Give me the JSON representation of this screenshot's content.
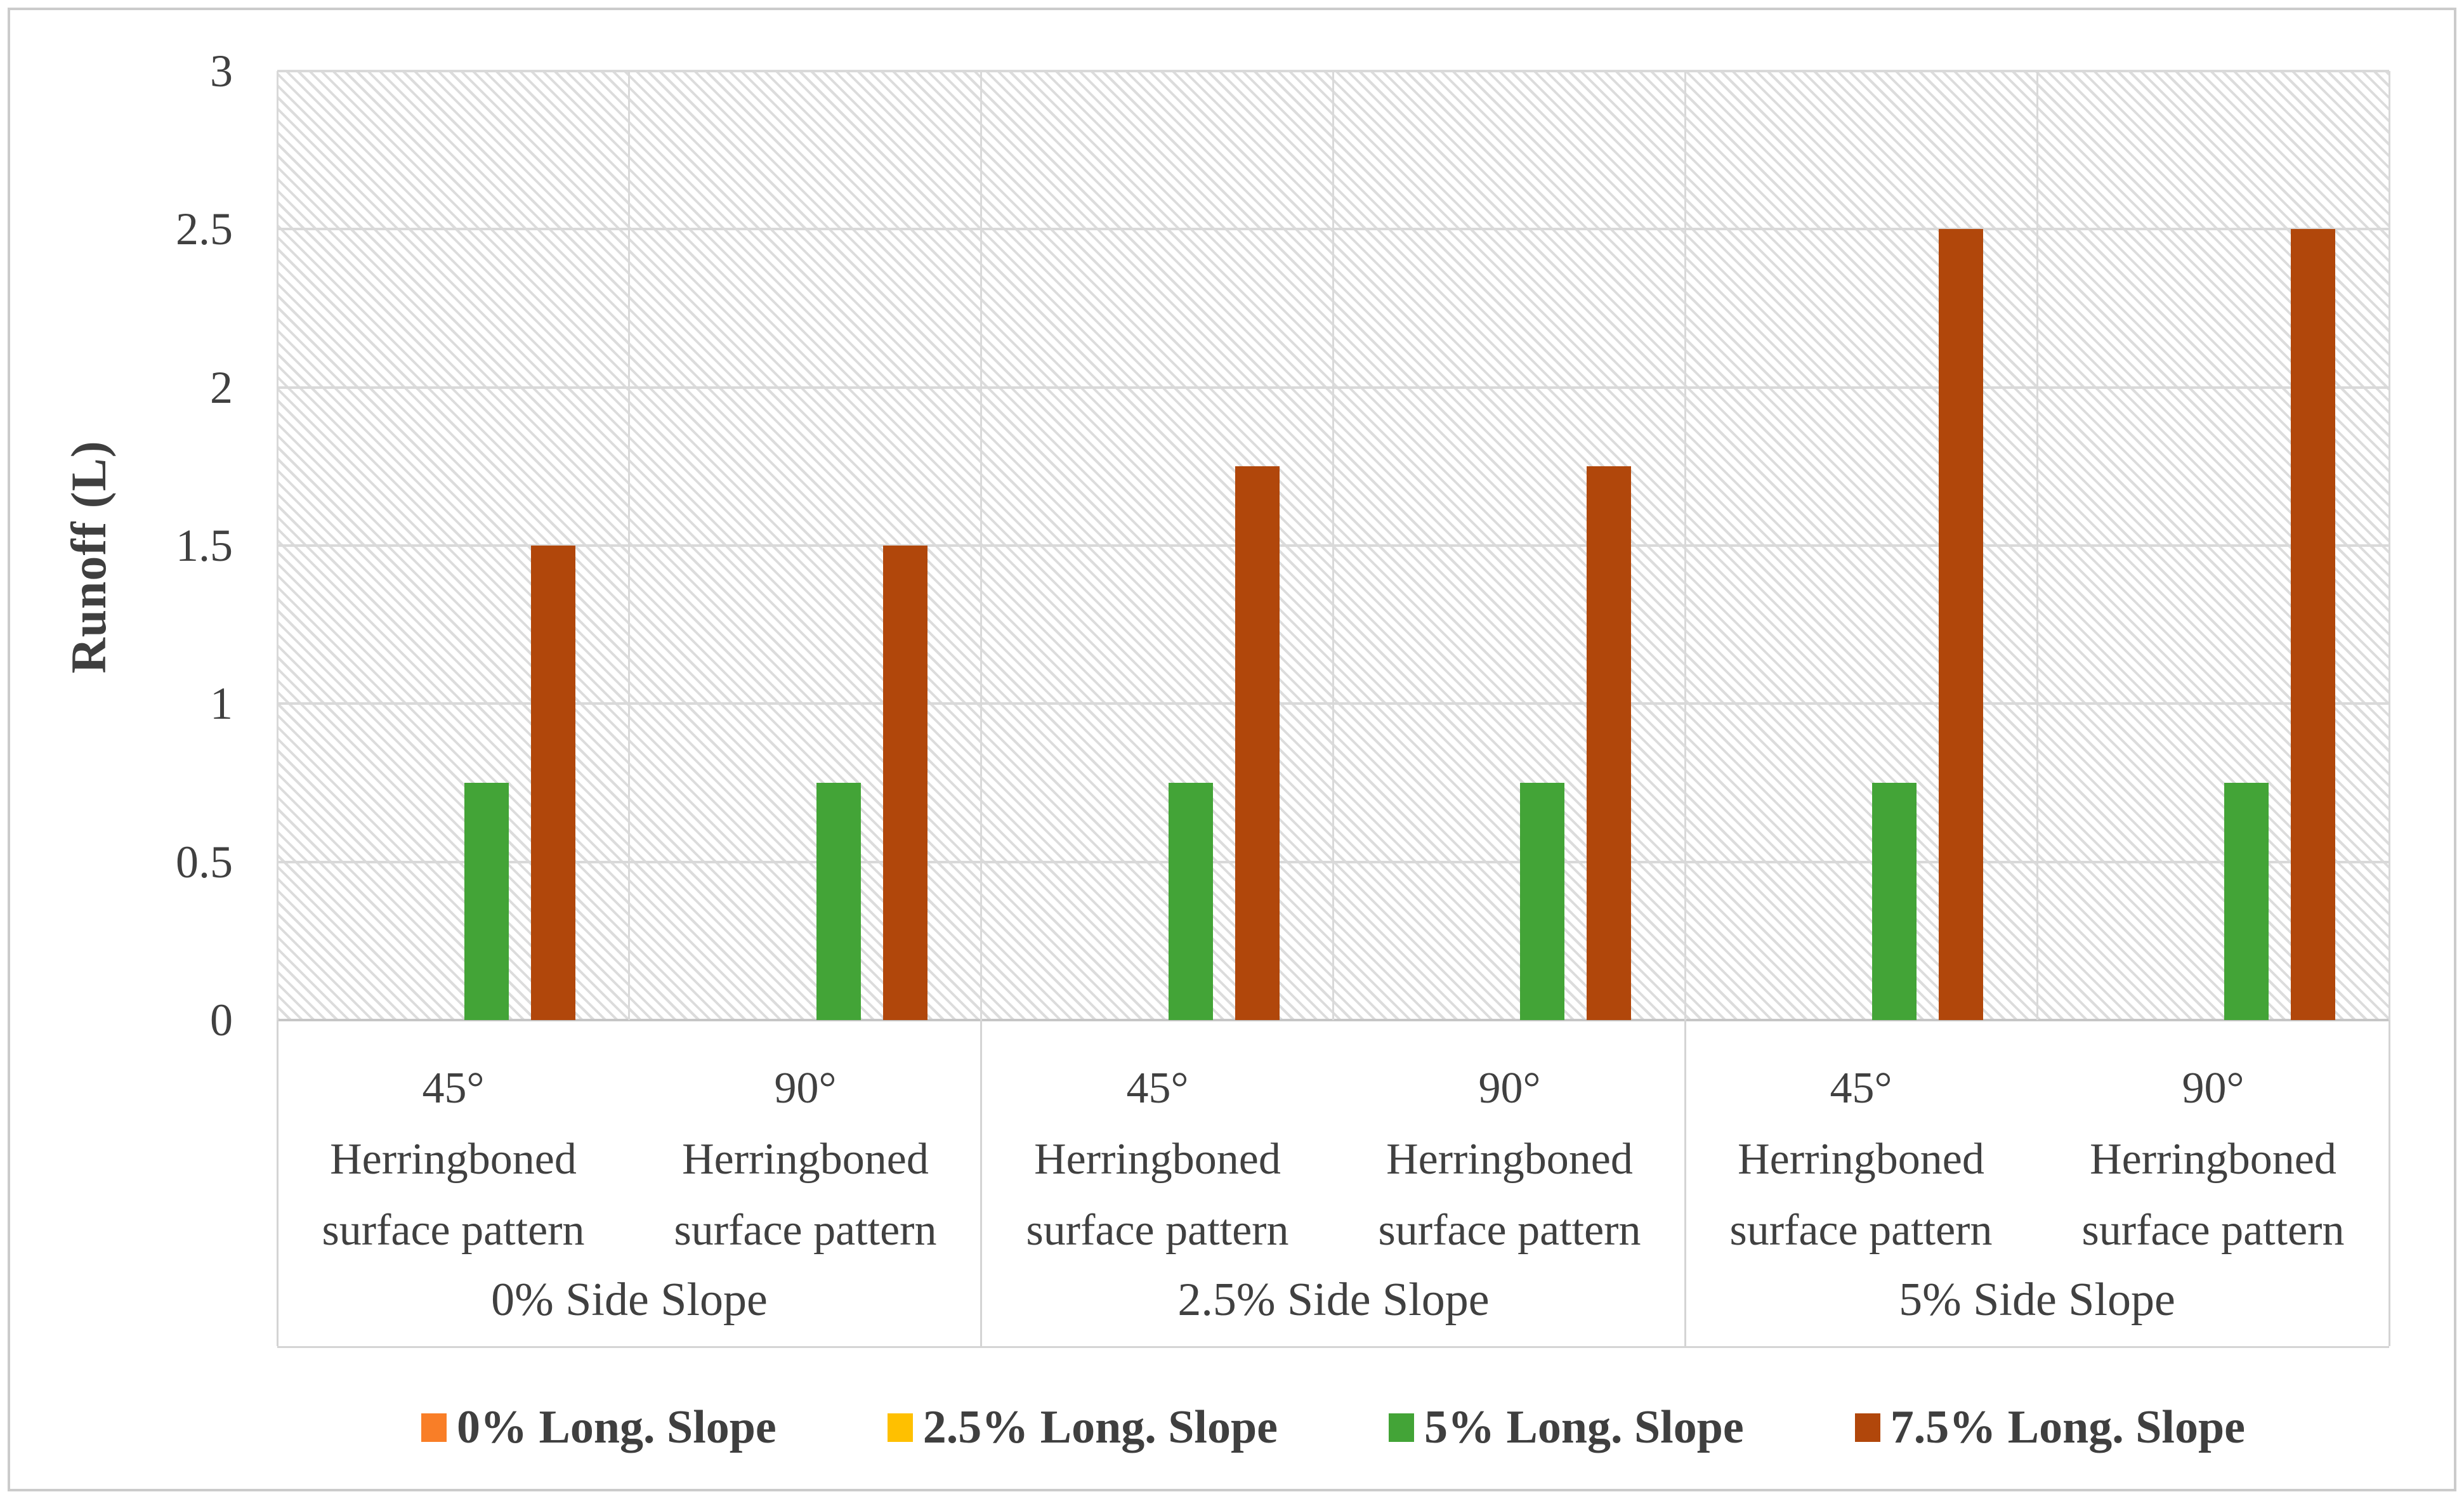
{
  "figure": {
    "background": "#ffffff",
    "border_color": "#cbcbcb"
  },
  "chart_data": {
    "type": "bar",
    "title": "",
    "xlabel": "",
    "ylabel": "Runoff (L)",
    "ylim": [
      0,
      3
    ],
    "ytick_step": 0.5,
    "ytick_labels": [
      "0",
      "0.5",
      "1",
      "1.5",
      "2",
      "2.5",
      "3"
    ],
    "grid": "horizontal gridlines at 0.5 intervals plus vertical category separators",
    "plot_background": "light diagonal hatch pattern",
    "legend_position": "bottom",
    "groups": [
      {
        "label": "0% Side Slope",
        "categories": [
          {
            "lines": [
              "45°",
              "Herringboned",
              "surface pattern"
            ]
          },
          {
            "lines": [
              "90°",
              "Herringboned",
              "surface pattern"
            ]
          }
        ]
      },
      {
        "label": "2.5% Side Slope",
        "categories": [
          {
            "lines": [
              "45°",
              "Herringboned",
              "surface pattern"
            ]
          },
          {
            "lines": [
              "90°",
              "Herringboned",
              "surface pattern"
            ]
          }
        ]
      },
      {
        "label": "5% Side Slope",
        "categories": [
          {
            "lines": [
              "45°",
              "Herringboned",
              "surface pattern"
            ]
          },
          {
            "lines": [
              "90°",
              "Herringboned",
              "surface pattern"
            ]
          }
        ]
      }
    ],
    "series": [
      {
        "name": "0% Long. Slope",
        "color": "#F97E27",
        "values": [
          0,
          0,
          0,
          0,
          0,
          0
        ]
      },
      {
        "name": "2.5% Long. Slope",
        "color": "#FFC000",
        "values": [
          0,
          0,
          0,
          0,
          0,
          0
        ]
      },
      {
        "name": "5% Long. Slope",
        "color": "#43A437",
        "values": [
          0.75,
          0.75,
          0.75,
          0.75,
          0.75,
          0.75
        ]
      },
      {
        "name": "7.5% Long. Slope",
        "color": "#B1470B",
        "values": [
          1.5,
          1.5,
          1.75,
          1.75,
          2.5,
          2.5
        ]
      }
    ],
    "colors": {
      "gridline": "#d9d9d9",
      "axis_line": "#c6c6c6",
      "text": "#404040",
      "hatch": "#dcdcdc"
    }
  }
}
